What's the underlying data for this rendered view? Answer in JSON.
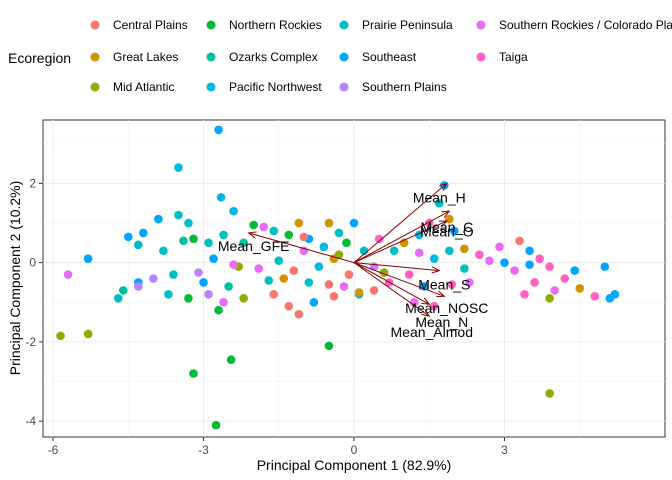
{
  "chart_data": {
    "type": "scatter",
    "subtype": "pca-biplot",
    "xlabel": "Principal Component 1 (82.9%)",
    "ylabel": "Principal Component 2 (10.2%)",
    "xlim": [
      -6.2,
      6.2
    ],
    "ylim": [
      -4.4,
      3.6
    ],
    "x_ticks": [
      -6,
      -3,
      0,
      3
    ],
    "x_tick_labels": [
      "-6",
      "-3",
      "0",
      "3"
    ],
    "y_ticks": [
      -4,
      -2,
      0,
      2
    ],
    "y_tick_labels": [
      "-4",
      "-2",
      "0",
      "2"
    ],
    "grid": true,
    "legend": {
      "title": "Ecoregion",
      "placement": "top",
      "entries": [
        {
          "name": "Central Plains",
          "color": "#F8766D"
        },
        {
          "name": "Great Lakes",
          "color": "#D39200"
        },
        {
          "name": "Mid Atlantic",
          "color": "#93AA00"
        },
        {
          "name": "Northern Rockies",
          "color": "#00BA38"
        },
        {
          "name": "Ozarks Complex",
          "color": "#00C19F"
        },
        {
          "name": "Pacific Northwest",
          "color": "#00B9E3"
        },
        {
          "name": "Prairie Peninsula",
          "color": "#00BFC4"
        },
        {
          "name": "Southeast",
          "color": "#00A5FF"
        },
        {
          "name": "Southern Plains",
          "color": "#B983FF"
        },
        {
          "name": "Southern Rockies / Colorado Pla",
          "color": "#E76BF3"
        },
        {
          "name": "Taiga",
          "color": "#FF61C3"
        }
      ]
    },
    "vector_color": "#8B0000",
    "vectors": [
      {
        "label": "Mean_H",
        "x": 1.85,
        "y": 2.0
      },
      {
        "label": "Mean_C",
        "x": 1.9,
        "y": 1.3
      },
      {
        "label": "Mean_O",
        "x": 1.85,
        "y": 1.05
      },
      {
        "label": "Mean_GFE",
        "x": -2.1,
        "y": 0.75
      },
      {
        "label": "Mean_S",
        "x": 1.7,
        "y": -0.2
      },
      {
        "label": "Mean_NOSC",
        "x": 1.8,
        "y": -0.85
      },
      {
        "label": "Mean_N",
        "x": 1.5,
        "y": -1.05
      },
      {
        "label": "Mean_Almod",
        "x": 1.5,
        "y": -1.35
      }
    ],
    "vector_label_pos": [
      {
        "label": "Mean_H",
        "x": 1.7,
        "y": 1.65
      },
      {
        "label": "Mean_C",
        "x": 1.85,
        "y": 0.9
      },
      {
        "label": "Mean_O",
        "x": 1.85,
        "y": 0.78
      },
      {
        "label": "Mean_GFE",
        "x": -2.0,
        "y": 0.42
      },
      {
        "label": "Mean_S",
        "x": 1.8,
        "y": -0.55
      },
      {
        "label": "Mean_NOSC",
        "x": 1.85,
        "y": -1.15
      },
      {
        "label": "Mean_N",
        "x": 1.75,
        "y": -1.5
      },
      {
        "label": "Mean_Almod",
        "x": 1.55,
        "y": -1.75
      }
    ],
    "points": [
      {
        "x": -2.7,
        "y": 3.35,
        "g": 7
      },
      {
        "x": -3.5,
        "y": 2.4,
        "g": 5
      },
      {
        "x": -2.4,
        "y": 1.3,
        "g": 5
      },
      {
        "x": -2.65,
        "y": 1.65,
        "g": 5
      },
      {
        "x": -3.9,
        "y": 1.1,
        "g": 7
      },
      {
        "x": -3.5,
        "y": 1.2,
        "g": 6
      },
      {
        "x": -3.3,
        "y": 1.0,
        "g": 6
      },
      {
        "x": -4.2,
        "y": 0.75,
        "g": 7
      },
      {
        "x": -4.5,
        "y": 0.65,
        "g": 7
      },
      {
        "x": -4.3,
        "y": 0.45,
        "g": 6
      },
      {
        "x": -3.8,
        "y": 0.3,
        "g": 6
      },
      {
        "x": -3.4,
        "y": 0.55,
        "g": 4
      },
      {
        "x": -3.2,
        "y": 0.6,
        "g": 3
      },
      {
        "x": -2.9,
        "y": 0.5,
        "g": 6
      },
      {
        "x": -2.6,
        "y": 0.7,
        "g": 6
      },
      {
        "x": -2.2,
        "y": 0.5,
        "g": 4
      },
      {
        "x": -2.0,
        "y": 0.95,
        "g": 3
      },
      {
        "x": -1.8,
        "y": 0.9,
        "g": 9
      },
      {
        "x": -1.6,
        "y": 0.8,
        "g": 6
      },
      {
        "x": -1.3,
        "y": 0.7,
        "g": 3
      },
      {
        "x": -1.1,
        "y": 1.0,
        "g": 1
      },
      {
        "x": -0.9,
        "y": 0.6,
        "g": 7
      },
      {
        "x": -0.5,
        "y": 1.0,
        "g": 1
      },
      {
        "x": -0.3,
        "y": 0.75,
        "g": 6
      },
      {
        "x": 0.0,
        "y": 1.0,
        "g": 7
      },
      {
        "x": -0.15,
        "y": 0.5,
        "g": 3
      },
      {
        "x": -0.6,
        "y": 0.4,
        "g": 5
      },
      {
        "x": -1.0,
        "y": 0.3,
        "g": 9
      },
      {
        "x": -0.4,
        "y": 0.1,
        "g": 1
      },
      {
        "x": -0.7,
        "y": -0.1,
        "g": 5
      },
      {
        "x": -1.2,
        "y": -0.2,
        "g": 0
      },
      {
        "x": -1.5,
        "y": 0.05,
        "g": 6
      },
      {
        "x": -1.9,
        "y": -0.15,
        "g": 9
      },
      {
        "x": -2.3,
        "y": -0.1,
        "g": 2
      },
      {
        "x": -2.8,
        "y": 0.1,
        "g": 7
      },
      {
        "x": -3.1,
        "y": -0.25,
        "g": 8
      },
      {
        "x": -3.6,
        "y": -0.3,
        "g": 6
      },
      {
        "x": -4.0,
        "y": -0.4,
        "g": 8
      },
      {
        "x": -4.3,
        "y": -0.5,
        "g": 7
      },
      {
        "x": -4.6,
        "y": -0.7,
        "g": 4
      },
      {
        "x": -4.7,
        "y": -0.9,
        "g": 6
      },
      {
        "x": -4.3,
        "y": -0.6,
        "g": 8
      },
      {
        "x": -3.7,
        "y": -0.8,
        "g": 6
      },
      {
        "x": -3.3,
        "y": -0.9,
        "g": 3
      },
      {
        "x": -2.9,
        "y": -0.8,
        "g": 8
      },
      {
        "x": -2.5,
        "y": -0.6,
        "g": 4
      },
      {
        "x": -2.2,
        "y": -0.9,
        "g": 2
      },
      {
        "x": -2.6,
        "y": -1.0,
        "g": 9
      },
      {
        "x": -2.7,
        "y": -1.2,
        "g": 3
      },
      {
        "x": -5.3,
        "y": 0.1,
        "g": 7
      },
      {
        "x": -5.7,
        "y": -0.3,
        "g": 9
      },
      {
        "x": -5.85,
        "y": -1.85,
        "g": 2
      },
      {
        "x": -5.3,
        "y": -1.8,
        "g": 2
      },
      {
        "x": -3.2,
        "y": -2.8,
        "g": 3
      },
      {
        "x": -2.45,
        "y": -2.45,
        "g": 3
      },
      {
        "x": -2.75,
        "y": -4.1,
        "g": 3
      },
      {
        "x": -0.5,
        "y": -2.1,
        "g": 3
      },
      {
        "x": -0.3,
        "y": 0.2,
        "g": 2
      },
      {
        "x": 0.2,
        "y": 0.3,
        "g": 6
      },
      {
        "x": -0.1,
        "y": -0.3,
        "g": 0
      },
      {
        "x": 0.4,
        "y": -0.1,
        "g": 8
      },
      {
        "x": -0.5,
        "y": -0.55,
        "g": 0
      },
      {
        "x": -0.9,
        "y": -0.5,
        "g": 6
      },
      {
        "x": -1.4,
        "y": -0.4,
        "g": 1
      },
      {
        "x": -1.6,
        "y": -0.8,
        "g": 0
      },
      {
        "x": -1.3,
        "y": -1.1,
        "g": 0
      },
      {
        "x": -1.1,
        "y": -1.3,
        "g": 0
      },
      {
        "x": -0.8,
        "y": -1.0,
        "g": 7
      },
      {
        "x": -0.4,
        "y": -0.85,
        "g": 0
      },
      {
        "x": -0.2,
        "y": -0.6,
        "g": 9
      },
      {
        "x": 0.1,
        "y": -0.8,
        "g": 6
      },
      {
        "x": 0.4,
        "y": -0.7,
        "g": 0
      },
      {
        "x": 0.1,
        "y": -0.75,
        "g": 1
      },
      {
        "x": 0.7,
        "y": -0.5,
        "g": 10
      },
      {
        "x": 0.5,
        "y": 0.6,
        "g": 10
      },
      {
        "x": 0.8,
        "y": 0.3,
        "g": 6
      },
      {
        "x": 1.0,
        "y": 0.5,
        "g": 1
      },
      {
        "x": 1.3,
        "y": 0.25,
        "g": 9
      },
      {
        "x": 1.1,
        "y": -0.3,
        "g": 10
      },
      {
        "x": 1.4,
        "y": -0.6,
        "g": 7
      },
      {
        "x": 1.6,
        "y": 0.1,
        "g": 5
      },
      {
        "x": 1.9,
        "y": 0.3,
        "g": 6
      },
      {
        "x": 2.2,
        "y": 0.35,
        "g": 1
      },
      {
        "x": 2.5,
        "y": 0.2,
        "g": 10
      },
      {
        "x": 2.7,
        "y": 0.05,
        "g": 9
      },
      {
        "x": 2.2,
        "y": -0.15,
        "g": 6
      },
      {
        "x": 1.95,
        "y": -0.55,
        "g": 10
      },
      {
        "x": 1.6,
        "y": -1.1,
        "g": 10
      },
      {
        "x": 1.2,
        "y": -1.0,
        "g": 9
      },
      {
        "x": 1.8,
        "y": 1.95,
        "g": 7
      },
      {
        "x": 1.7,
        "y": 1.5,
        "g": 6
      },
      {
        "x": 1.9,
        "y": 1.1,
        "g": 1
      },
      {
        "x": 1.5,
        "y": 1.0,
        "g": 10
      },
      {
        "x": 2.0,
        "y": 0.8,
        "g": 7
      },
      {
        "x": 1.3,
        "y": 0.7,
        "g": 5
      },
      {
        "x": 3.3,
        "y": 0.55,
        "g": 0
      },
      {
        "x": 3.5,
        "y": 0.3,
        "g": 7
      },
      {
        "x": 3.7,
        "y": 0.1,
        "g": 10
      },
      {
        "x": 3.9,
        "y": -0.1,
        "g": 10
      },
      {
        "x": 3.5,
        "y": -0.05,
        "g": 7
      },
      {
        "x": 3.2,
        "y": -0.2,
        "g": 9
      },
      {
        "x": 3.0,
        "y": 0.0,
        "g": 7
      },
      {
        "x": 3.6,
        "y": -0.5,
        "g": 10
      },
      {
        "x": 3.4,
        "y": -0.8,
        "g": 10
      },
      {
        "x": 4.0,
        "y": -0.7,
        "g": 9
      },
      {
        "x": 3.9,
        "y": -0.9,
        "g": 2
      },
      {
        "x": 4.2,
        "y": -0.4,
        "g": 10
      },
      {
        "x": 4.4,
        "y": -0.2,
        "g": 7
      },
      {
        "x": 4.5,
        "y": -0.65,
        "g": 1
      },
      {
        "x": 4.8,
        "y": -0.85,
        "g": 10
      },
      {
        "x": 5.0,
        "y": -0.1,
        "g": 7
      },
      {
        "x": 5.1,
        "y": -0.9,
        "g": 7
      },
      {
        "x": 5.2,
        "y": -0.8,
        "g": 7
      },
      {
        "x": 3.9,
        "y": -3.3,
        "g": 2
      },
      {
        "x": -2.4,
        "y": -0.05,
        "g": 9
      },
      {
        "x": -1.7,
        "y": -0.45,
        "g": 6
      },
      {
        "x": 2.3,
        "y": -0.5,
        "g": 9
      },
      {
        "x": -3.0,
        "y": -0.5,
        "g": 7
      },
      {
        "x": -1.0,
        "y": 0.65,
        "g": 0
      },
      {
        "x": 0.6,
        "y": -0.25,
        "g": 2
      },
      {
        "x": 2.9,
        "y": 0.4,
        "g": 9
      }
    ]
  }
}
